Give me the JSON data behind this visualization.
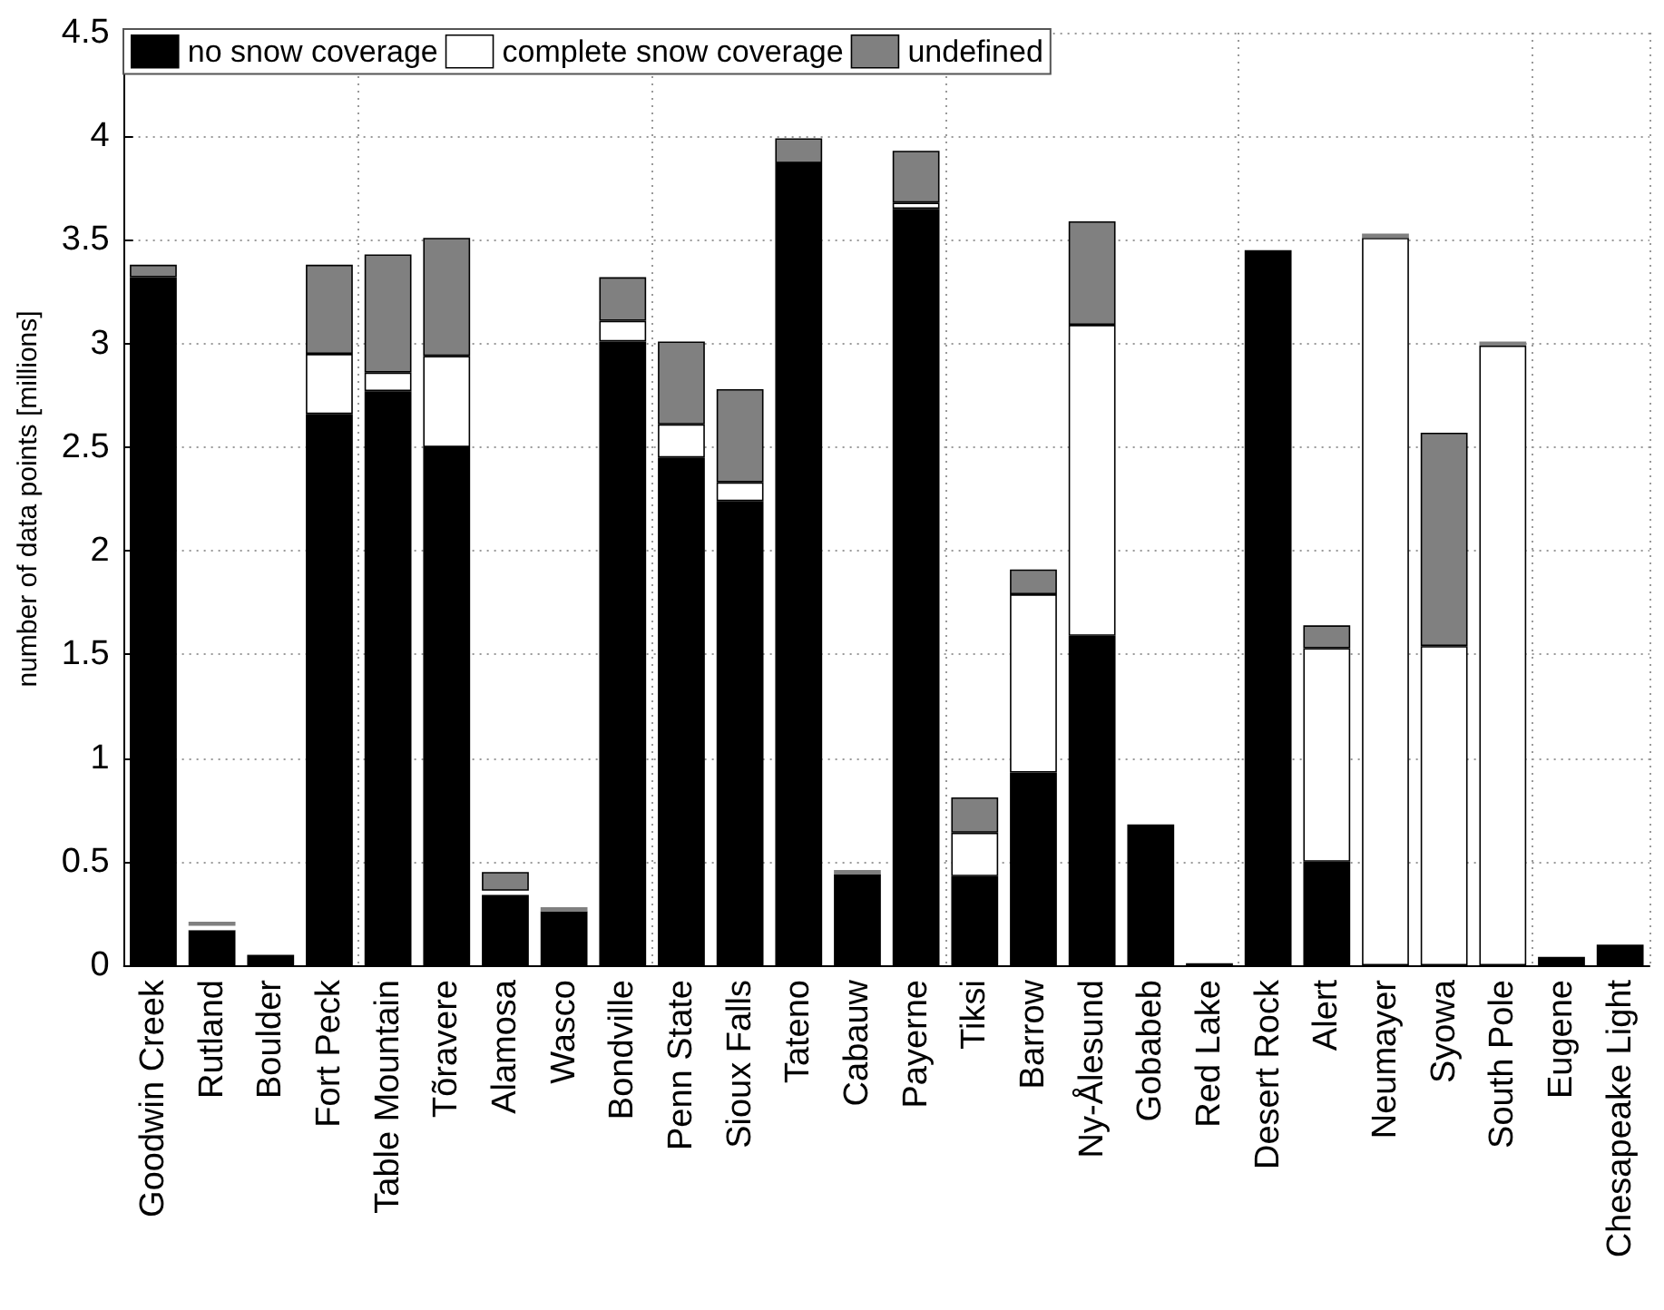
{
  "chart_data": {
    "type": "bar",
    "stacked": true,
    "ylabel": "number of data points [millions]",
    "categories": [
      "Goodwin Creek",
      "Rutland",
      "Boulder",
      "Fort Peck",
      "Table Mountain",
      "Tõravere",
      "Alamosa",
      "Wasco",
      "Bondville",
      "Penn State",
      "Sioux Falls",
      "Tateno",
      "Cabauw",
      "Payerne",
      "Tiksi",
      "Barrow",
      "Ny-Ålesund",
      "Gobabeb",
      "Red Lake",
      "Desert Rock",
      "Alert",
      "Neumayer",
      "Syowa",
      "South Pole",
      "Eugene",
      "Chesapeake Light"
    ],
    "series": [
      {
        "name": "no snow coverage",
        "color": "#000000",
        "values": [
          3.32,
          0.17,
          0.05,
          2.66,
          2.77,
          2.5,
          0.34,
          0.26,
          3.01,
          2.45,
          2.24,
          3.87,
          0.44,
          3.65,
          0.43,
          0.93,
          1.59,
          0.68,
          0.01,
          3.45,
          0.5,
          0,
          0,
          0,
          0.04,
          0.1
        ]
      },
      {
        "name": "complete snow coverage",
        "color": "#ffffff",
        "values": [
          0,
          0.02,
          0,
          0.29,
          0.09,
          0.44,
          0.02,
          0,
          0.1,
          0.16,
          0.09,
          0,
          0,
          0.03,
          0.21,
          0.86,
          1.5,
          0,
          0,
          0,
          1.03,
          3.51,
          1.54,
          2.99,
          0,
          0
        ]
      },
      {
        "name": "undefined",
        "color": "#808080",
        "values": [
          0.06,
          0.02,
          0,
          0.43,
          0.57,
          0.57,
          0.09,
          0.02,
          0.21,
          0.4,
          0.45,
          0.12,
          0.02,
          0.25,
          0.17,
          0.12,
          0.5,
          0,
          0,
          0,
          0.11,
          0.02,
          1.03,
          0.02,
          0,
          0
        ]
      }
    ],
    "ylim": [
      0,
      4.5
    ],
    "yticks": [
      0,
      0.5,
      1,
      1.5,
      2,
      2.5,
      3,
      3.5,
      4,
      4.5
    ],
    "grid": true,
    "legend": "top left"
  }
}
